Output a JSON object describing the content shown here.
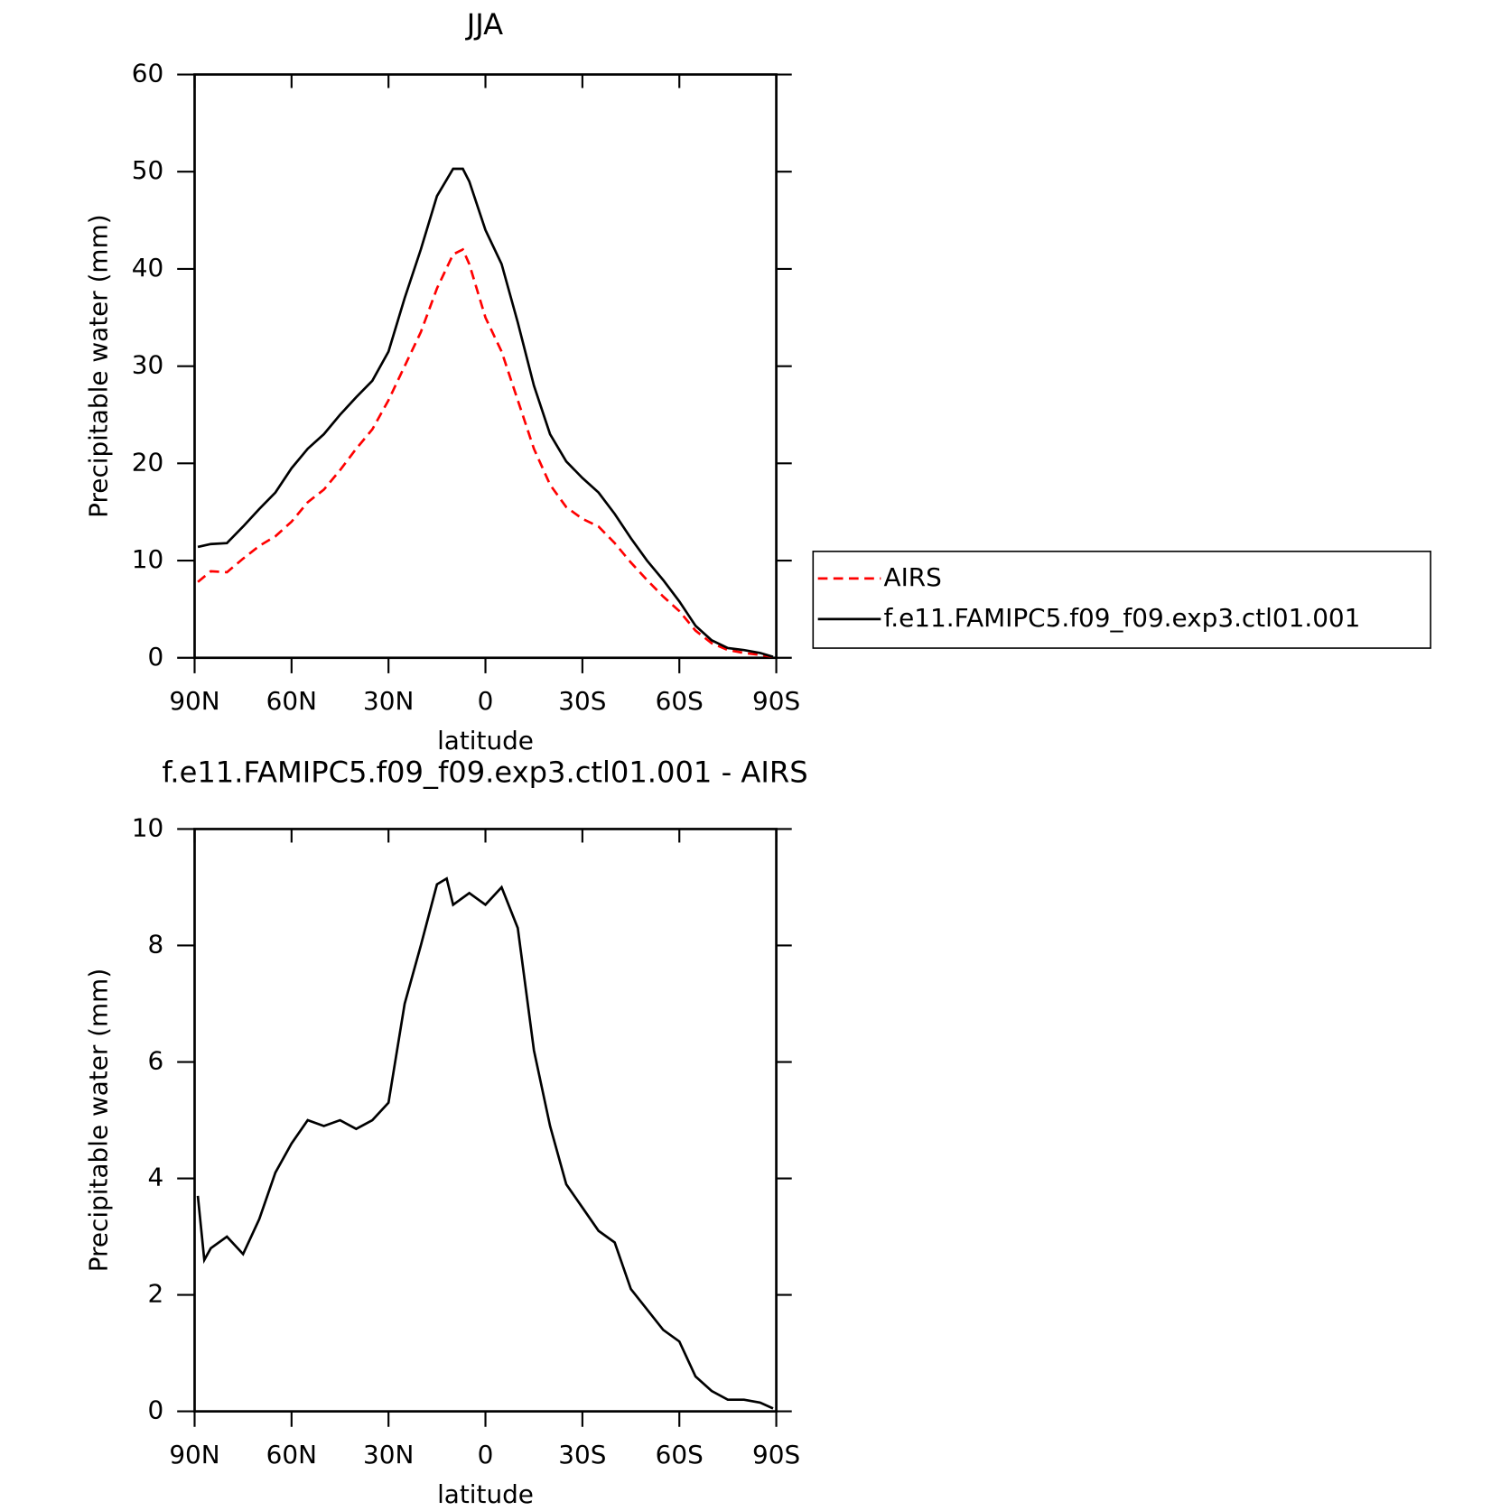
{
  "chart_data": [
    {
      "type": "line",
      "title": "JJA",
      "xlabel": "latitude",
      "ylabel": "Precipitable water (mm)",
      "x": [
        89,
        85,
        80,
        75,
        70,
        65,
        60,
        55,
        50,
        45,
        40,
        35,
        30,
        25,
        20,
        15,
        10,
        7,
        5,
        0,
        -5,
        -10,
        -15,
        -20,
        -25,
        -30,
        -35,
        -40,
        -45,
        -50,
        -55,
        -60,
        -65,
        -70,
        -75,
        -80,
        -85,
        -89
      ],
      "series": [
        {
          "name": "AIRS",
          "color": "#ff0000",
          "line_style": "dashed",
          "values": [
            7.8,
            8.9,
            8.8,
            10.2,
            11.5,
            12.5,
            14.0,
            16.0,
            17.3,
            19.3,
            21.5,
            23.5,
            26.5,
            30.0,
            33.5,
            38.0,
            41.5,
            42.0,
            40.5,
            35.0,
            31.5,
            26.5,
            21.5,
            17.8,
            15.5,
            14.3,
            13.5,
            11.8,
            9.8,
            8.0,
            6.3,
            4.8,
            2.8,
            1.5,
            0.8,
            0.5,
            0.3,
            0.1
          ]
        },
        {
          "name": "f.e11.FAMIPC5.f09_f09.exp3.ctl01.001",
          "color": "#000000",
          "line_style": "solid",
          "values": [
            11.4,
            11.7,
            11.8,
            13.5,
            15.3,
            17.0,
            19.5,
            21.5,
            23.0,
            25.0,
            26.8,
            28.5,
            31.5,
            37.0,
            42.0,
            47.5,
            50.3,
            50.3,
            49.0,
            44.0,
            40.5,
            34.5,
            28.0,
            23.0,
            20.2,
            18.5,
            17.0,
            14.8,
            12.3,
            10.0,
            8.0,
            5.8,
            3.3,
            1.8,
            1.0,
            0.8,
            0.5,
            0.1
          ]
        }
      ],
      "xlim": [
        90,
        -90
      ],
      "xticks": [
        {
          "value": 90,
          "label": "90N"
        },
        {
          "value": 60,
          "label": "60N"
        },
        {
          "value": 30,
          "label": "30N"
        },
        0,
        {
          "value": -30,
          "label": "30S"
        },
        {
          "value": -60,
          "label": "60S"
        },
        {
          "value": -90,
          "label": "90S"
        }
      ],
      "ylim": [
        0,
        60
      ],
      "yticks": [
        0,
        10,
        20,
        30,
        40,
        50,
        60
      ],
      "legend": "right"
    },
    {
      "type": "line",
      "title": "f.e11.FAMIPC5.f09_f09.exp3.ctl01.001 - AIRS",
      "xlabel": "latitude",
      "ylabel": "Precipitable water (mm)",
      "x": [
        89,
        87,
        85,
        80,
        75,
        70,
        65,
        60,
        55,
        50,
        45,
        40,
        35,
        30,
        25,
        20,
        15,
        12,
        10,
        5,
        0,
        -5,
        -10,
        -15,
        -20,
        -25,
        -30,
        -35,
        -40,
        -45,
        -50,
        -55,
        -60,
        -65,
        -70,
        -75,
        -80,
        -85,
        -89
      ],
      "series": [
        {
          "name": "f.e11.FAMIPC5.f09_f09.exp3.ctl01.001 - AIRS",
          "color": "#000000",
          "line_style": "solid",
          "values": [
            3.7,
            2.6,
            2.8,
            3.0,
            2.7,
            3.3,
            4.1,
            4.6,
            5.0,
            4.9,
            5.0,
            4.85,
            5.0,
            5.3,
            7.0,
            8.0,
            9.05,
            9.15,
            8.7,
            8.9,
            8.7,
            9.0,
            8.3,
            6.2,
            4.9,
            3.9,
            3.5,
            3.1,
            2.9,
            2.1,
            1.75,
            1.4,
            1.2,
            0.6,
            0.35,
            0.2,
            0.2,
            0.15,
            0.05
          ]
        }
      ],
      "xlim": [
        90,
        -90
      ],
      "xticks": [
        {
          "value": 90,
          "label": "90N"
        },
        {
          "value": 60,
          "label": "60N"
        },
        {
          "value": 30,
          "label": "30N"
        },
        0,
        {
          "value": -30,
          "label": "30S"
        },
        {
          "value": -60,
          "label": "60S"
        },
        {
          "value": -90,
          "label": "90S"
        }
      ],
      "ylim": [
        0,
        10
      ],
      "yticks": [
        0,
        2,
        4,
        6,
        8,
        10
      ]
    }
  ]
}
